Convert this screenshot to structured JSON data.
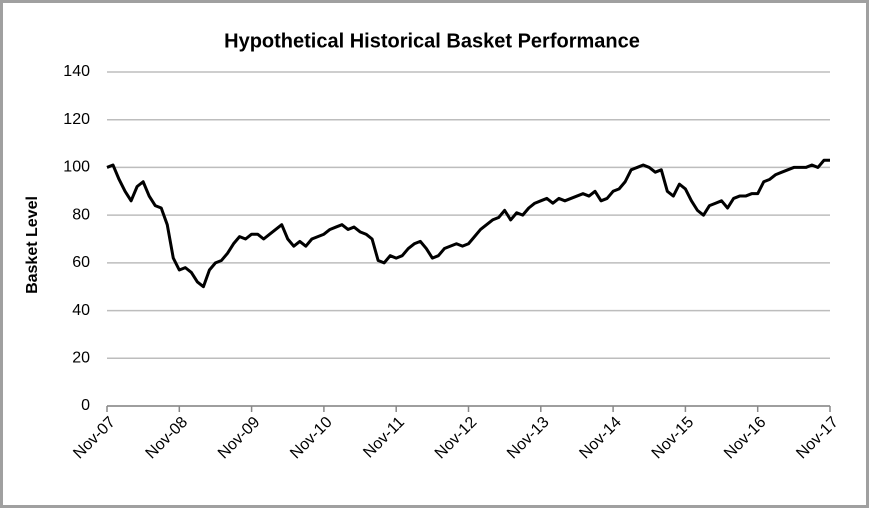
{
  "chart_data": {
    "type": "line",
    "title": "Hypothetical Historical Basket Performance",
    "y_label": "Basket Level",
    "categories": [
      "Nov-07",
      null,
      null,
      null,
      null,
      null,
      null,
      null,
      null,
      null,
      null,
      null,
      "Nov-08",
      null,
      null,
      null,
      null,
      null,
      null,
      null,
      null,
      null,
      null,
      null,
      "Nov-09",
      null,
      null,
      null,
      null,
      null,
      null,
      null,
      null,
      null,
      null,
      null,
      "Nov-10",
      null,
      null,
      null,
      null,
      null,
      null,
      null,
      null,
      null,
      null,
      null,
      "Nov-11",
      null,
      null,
      null,
      null,
      null,
      null,
      null,
      null,
      null,
      null,
      null,
      "Nov-12",
      null,
      null,
      null,
      null,
      null,
      null,
      null,
      null,
      null,
      null,
      null,
      "Nov-13",
      null,
      null,
      null,
      null,
      null,
      null,
      null,
      null,
      null,
      null,
      null,
      "Nov-14",
      null,
      null,
      null,
      null,
      null,
      null,
      null,
      null,
      null,
      null,
      null,
      "Nov-15",
      null,
      null,
      null,
      null,
      null,
      null,
      null,
      null,
      null,
      null,
      null,
      "Nov-16",
      null,
      null,
      null,
      null,
      null,
      null,
      null,
      null,
      null,
      null,
      null,
      "Nov-17"
    ],
    "values": [
      100,
      101,
      95,
      90,
      86,
      92,
      94,
      88,
      84,
      83,
      76,
      62,
      57,
      58,
      56,
      52,
      50,
      57,
      60,
      61,
      64,
      68,
      71,
      70,
      72,
      72,
      70,
      72,
      74,
      76,
      70,
      67,
      69,
      67,
      70,
      71,
      72,
      74,
      75,
      76,
      74,
      75,
      73,
      72,
      70,
      61,
      60,
      63,
      62,
      63,
      66,
      68,
      69,
      66,
      62,
      63,
      66,
      67,
      68,
      67,
      68,
      71,
      74,
      76,
      78,
      79,
      82,
      78,
      81,
      80,
      83,
      85,
      86,
      87,
      85,
      87,
      86,
      87,
      88,
      89,
      88,
      90,
      86,
      87,
      90,
      91,
      94,
      99,
      100,
      101,
      100,
      98,
      99,
      90,
      88,
      93,
      91,
      86,
      82,
      80,
      84,
      85,
      86,
      83,
      87,
      88,
      88,
      89,
      89,
      94,
      95,
      97,
      98,
      99,
      100,
      100,
      100,
      101,
      100,
      103,
      103
    ],
    "color": "#000000",
    "ylim": [
      0,
      140
    ],
    "yticks": [
      0,
      20,
      40,
      60,
      80,
      100,
      120,
      140
    ],
    "grid": true
  }
}
